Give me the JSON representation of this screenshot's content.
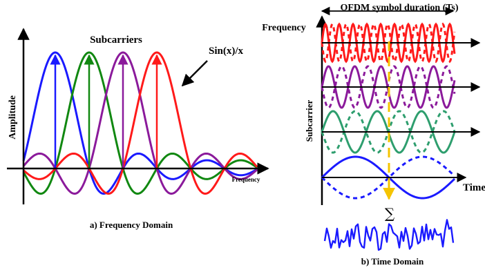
{
  "left_panel": {
    "title": "Subcarriers",
    "y_axis_label": "Amplitude",
    "x_axis_label": "Frequency",
    "sinc_label": "Sin(x)/x",
    "caption": "a) Frequency Domain",
    "subcarrier_colors": [
      "#1a1aff",
      "#118811",
      "#8b1a9b",
      "#ff1a1a"
    ]
  },
  "right_panel": {
    "duration_label": "OFDM symbol duration (Ts)",
    "y_top_label": "Frequency",
    "y_axis_label": "Subcarrier",
    "x_axis_label": "Time",
    "sum_symbol": "∑",
    "caption": "b) Time Domain",
    "subcarrier_colors": [
      "#ff1a1a",
      "#8b1a9b",
      "#2e9e6e",
      "#1a1aff"
    ],
    "marker_color": "#f5c400"
  }
}
